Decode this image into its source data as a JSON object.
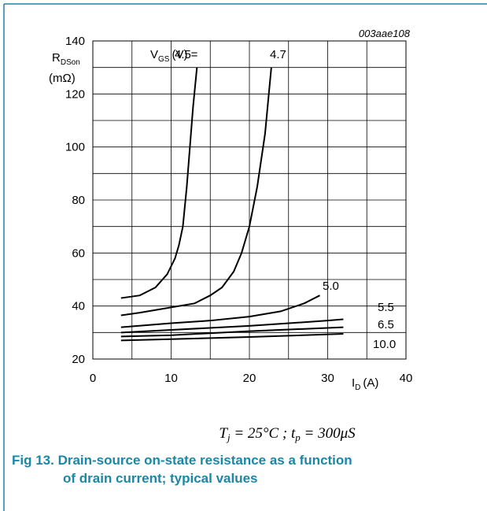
{
  "chart_data": {
    "type": "line",
    "figure_id": "003aae108",
    "y_label": {
      "main": "R",
      "sub": "DSon",
      "unit": "(mΩ)"
    },
    "x_label": {
      "main": "I",
      "sub": "D",
      "unit": "(A)"
    },
    "series_label": {
      "main": "V",
      "sub": "GS",
      "rest": "(V) ="
    },
    "xlim": [
      0,
      40
    ],
    "ylim": [
      20,
      140
    ],
    "xticks": [
      0,
      10,
      20,
      30,
      40
    ],
    "yticks": [
      20,
      40,
      60,
      80,
      100,
      120,
      140
    ],
    "x_grid": [
      5,
      15,
      25,
      35
    ],
    "y_grid": [
      30,
      50,
      70,
      90,
      110,
      130
    ],
    "grid": true,
    "series": [
      {
        "name": "4.5",
        "color": "#000000",
        "x": [
          3.6,
          6,
          8,
          9.5,
          10.5,
          11,
          11.5,
          12,
          12.4,
          12.8,
          13.3
        ],
        "values": [
          43,
          44,
          47,
          52,
          58,
          63,
          70,
          85,
          100,
          115,
          130
        ]
      },
      {
        "name": "4.7",
        "color": "#000000",
        "x": [
          3.6,
          6,
          10,
          13,
          15,
          16.5,
          18,
          19,
          20,
          21,
          22,
          22.8
        ],
        "values": [
          36.5,
          37.5,
          39.5,
          41,
          44,
          47,
          53,
          60,
          70,
          85,
          105,
          130
        ]
      },
      {
        "name": "5.0",
        "color": "#000000",
        "x": [
          3.6,
          10,
          15,
          20,
          24,
          27,
          29
        ],
        "values": [
          32,
          33.5,
          34.5,
          36,
          38,
          41,
          44
        ]
      },
      {
        "name": "5.5",
        "color": "#000000",
        "x": [
          3.6,
          10,
          20,
          30,
          32
        ],
        "values": [
          30,
          31,
          32.5,
          34.5,
          35
        ]
      },
      {
        "name": "6.5",
        "color": "#000000",
        "x": [
          3.6,
          10,
          20,
          32
        ],
        "values": [
          28.5,
          29,
          30.5,
          32
        ]
      },
      {
        "name": "10.0",
        "color": "#000000",
        "x": [
          3.6,
          10,
          20,
          32
        ],
        "values": [
          27,
          27.5,
          28.3,
          29.5
        ]
      }
    ],
    "formula": [
      "T",
      "j",
      " = 25°C ; t",
      "p",
      " = 300μS"
    ],
    "caption": [
      "Fig 13.  Drain-source on-state resistance as a function",
      "of drain current; typical values"
    ]
  }
}
